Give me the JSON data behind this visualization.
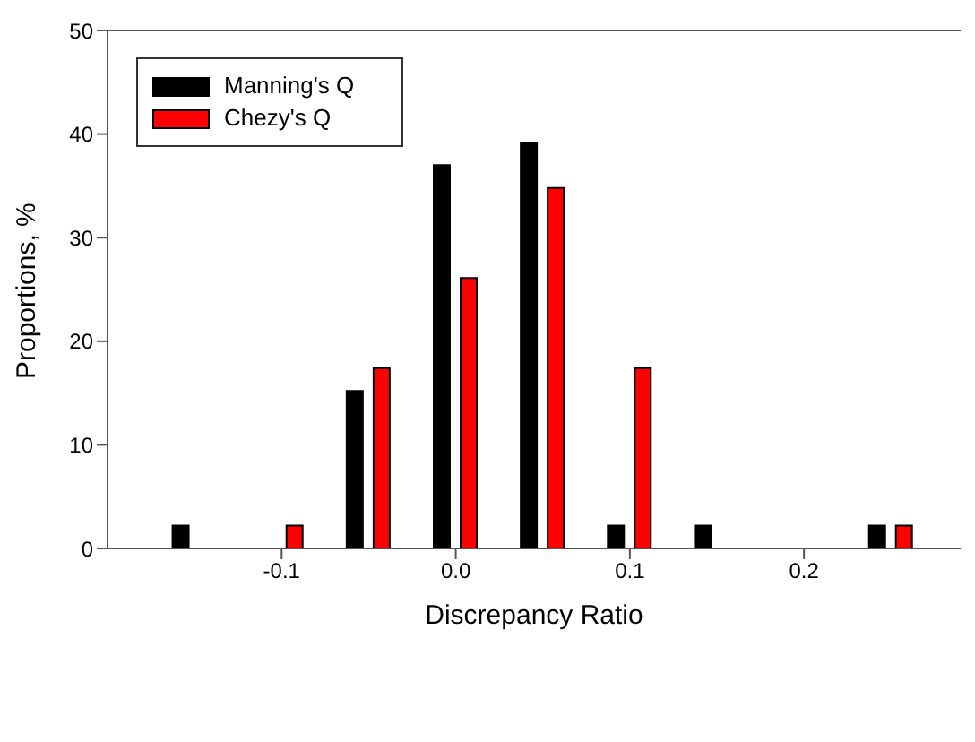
{
  "chart_data": {
    "type": "bar",
    "xlabel": "Discrepancy Ratio",
    "ylabel": "Proportions, %",
    "x": [
      -0.15,
      -0.1,
      -0.05,
      0,
      0.05,
      0.1,
      0.15,
      0.25
    ],
    "series": [
      {
        "name": "Manning's Q",
        "color": "#000000",
        "values": [
          2.2,
          null,
          15.2,
          37,
          39.1,
          2.2,
          2.2,
          2.2
        ]
      },
      {
        "name": "Chezy's Q",
        "color": "#ff0000",
        "values": [
          null,
          2.2,
          17.4,
          26.1,
          34.8,
          17.4,
          null,
          2.2
        ]
      }
    ],
    "xlim": [
      -0.2,
      0.29
    ],
    "xticks": [
      {
        "value": -0.1,
        "label": "-0.1"
      },
      {
        "value": 0,
        "label": "0.0"
      },
      {
        "value": 0.1,
        "label": "0.1"
      },
      {
        "value": 0.2,
        "label": "0.2"
      }
    ],
    "ylim": [
      0,
      50
    ],
    "yticks": [
      0,
      10,
      20,
      30,
      40,
      50
    ],
    "grid": false,
    "legend": "top left"
  }
}
